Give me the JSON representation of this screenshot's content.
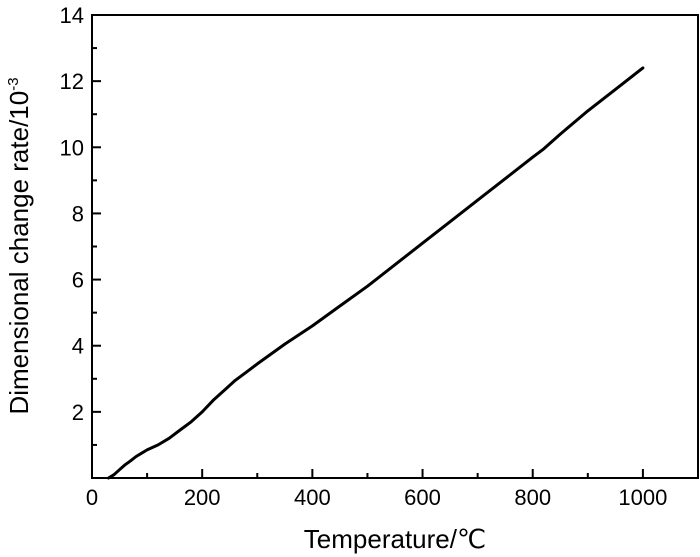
{
  "chart_data": {
    "type": "line",
    "xlabel": "Temperature/℃",
    "ylabel_main": "Dimensional change rate/10",
    "ylabel_exponent": "-3",
    "xlim": [
      0,
      1100
    ],
    "ylim": [
      0,
      14
    ],
    "x_ticks": [
      0,
      200,
      400,
      600,
      800,
      1000
    ],
    "y_ticks": [
      2,
      4,
      6,
      8,
      10,
      12,
      14
    ],
    "grid": false,
    "series": [
      {
        "color": "#000000",
        "x": [
          30,
          40,
          50,
          60,
          70,
          80,
          90,
          100,
          120,
          140,
          160,
          180,
          200,
          220,
          240,
          260,
          280,
          300,
          350,
          400,
          450,
          500,
          550,
          600,
          650,
          700,
          750,
          800,
          820,
          850,
          900,
          950,
          1000
        ],
        "y": [
          0.0,
          0.1,
          0.25,
          0.4,
          0.52,
          0.65,
          0.75,
          0.85,
          1.0,
          1.2,
          1.45,
          1.7,
          2.0,
          2.35,
          2.65,
          2.95,
          3.2,
          3.45,
          4.05,
          4.6,
          5.2,
          5.8,
          6.45,
          7.1,
          7.75,
          8.4,
          9.05,
          9.7,
          9.95,
          10.4,
          11.1,
          11.75,
          12.4
        ]
      }
    ]
  }
}
